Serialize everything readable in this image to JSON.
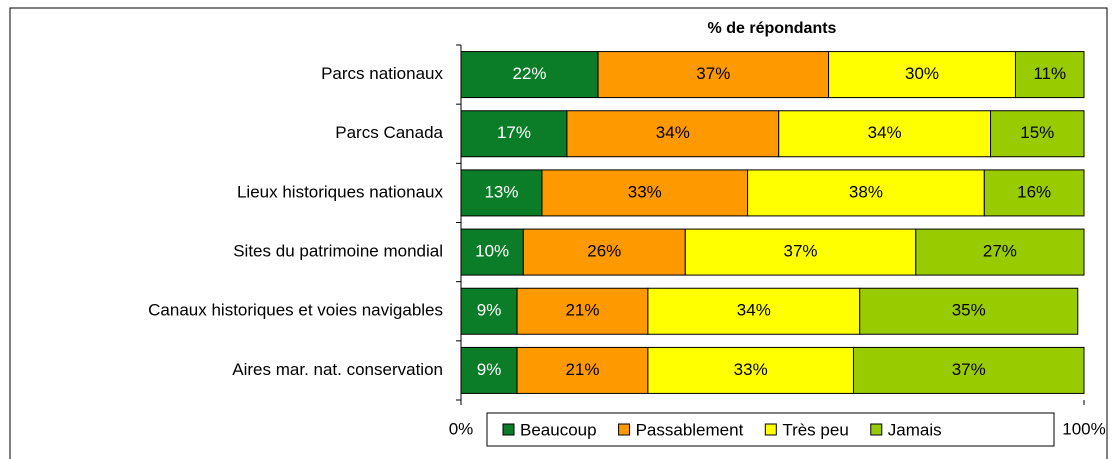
{
  "chart_data": {
    "type": "stacked_bar_horizontal",
    "title": "% de répondants",
    "categories": [
      "Parcs nationaux",
      "Parcs Canada",
      "Lieux historiques nationaux",
      "Sites du patrimoine mondial",
      "Canaux historiques et voies navigables",
      "Aires mar. nat. conservation"
    ],
    "series": [
      {
        "name": "Beaucoup",
        "color": "#0b7d28",
        "label_color": "#ffffff",
        "values": [
          22,
          17,
          13,
          10,
          9,
          9
        ],
        "value_labels": [
          "22%",
          "17%",
          "13%",
          "10%",
          "9%",
          "9%"
        ]
      },
      {
        "name": "Passablement",
        "color": "#ff9900",
        "label_color": "#000000",
        "values": [
          37,
          34,
          33,
          26,
          21,
          21
        ],
        "value_labels": [
          "37%",
          "34%",
          "33%",
          "26%",
          "21%",
          "21%"
        ]
      },
      {
        "name": "Très peu",
        "color": "#ffff00",
        "label_color": "#000000",
        "values": [
          30,
          34,
          38,
          37,
          34,
          33
        ],
        "value_labels": [
          "30%",
          "34%",
          "38%",
          "37%",
          "34%",
          "33%"
        ]
      },
      {
        "name": "Jamais",
        "color": "#99cc00",
        "label_color": "#000000",
        "values": [
          11,
          15,
          16,
          27,
          35,
          37
        ],
        "value_labels": [
          "11%",
          "15%",
          "16%",
          "27%",
          "35%",
          "37%"
        ]
      }
    ],
    "xlim": [
      0,
      100
    ],
    "xticks": [
      {
        "value": 0,
        "label": "0%"
      },
      {
        "value": 100,
        "label": "100%"
      }
    ],
    "legend": "bottom"
  }
}
